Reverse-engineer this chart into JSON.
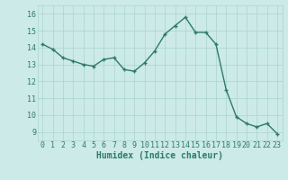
{
  "x": [
    0,
    1,
    2,
    3,
    4,
    5,
    6,
    7,
    8,
    9,
    10,
    11,
    12,
    13,
    14,
    15,
    16,
    17,
    18,
    19,
    20,
    21,
    22,
    23
  ],
  "y": [
    14.2,
    13.9,
    13.4,
    13.2,
    13.0,
    12.9,
    13.3,
    13.4,
    12.7,
    12.6,
    13.1,
    13.8,
    14.8,
    15.3,
    15.8,
    14.9,
    14.9,
    14.2,
    11.5,
    9.9,
    9.5,
    9.3,
    9.5,
    8.9
  ],
  "line_color": "#2d7a6a",
  "marker": "+",
  "bg_color": "#cceae8",
  "grid_color": "#aad4d0",
  "xlabel": "Humidex (Indice chaleur)",
  "xlim": [
    -0.5,
    23.5
  ],
  "ylim": [
    8.5,
    16.5
  ],
  "yticks": [
    9,
    10,
    11,
    12,
    13,
    14,
    15,
    16
  ],
  "xticks": [
    0,
    1,
    2,
    3,
    4,
    5,
    6,
    7,
    8,
    9,
    10,
    11,
    12,
    13,
    14,
    15,
    16,
    17,
    18,
    19,
    20,
    21,
    22,
    23
  ],
  "label_color": "#2d7a6a",
  "xlabel_fontsize": 7,
  "tick_fontsize": 6,
  "line_width": 1.0,
  "marker_size": 3.5,
  "marker_ew": 1.0
}
